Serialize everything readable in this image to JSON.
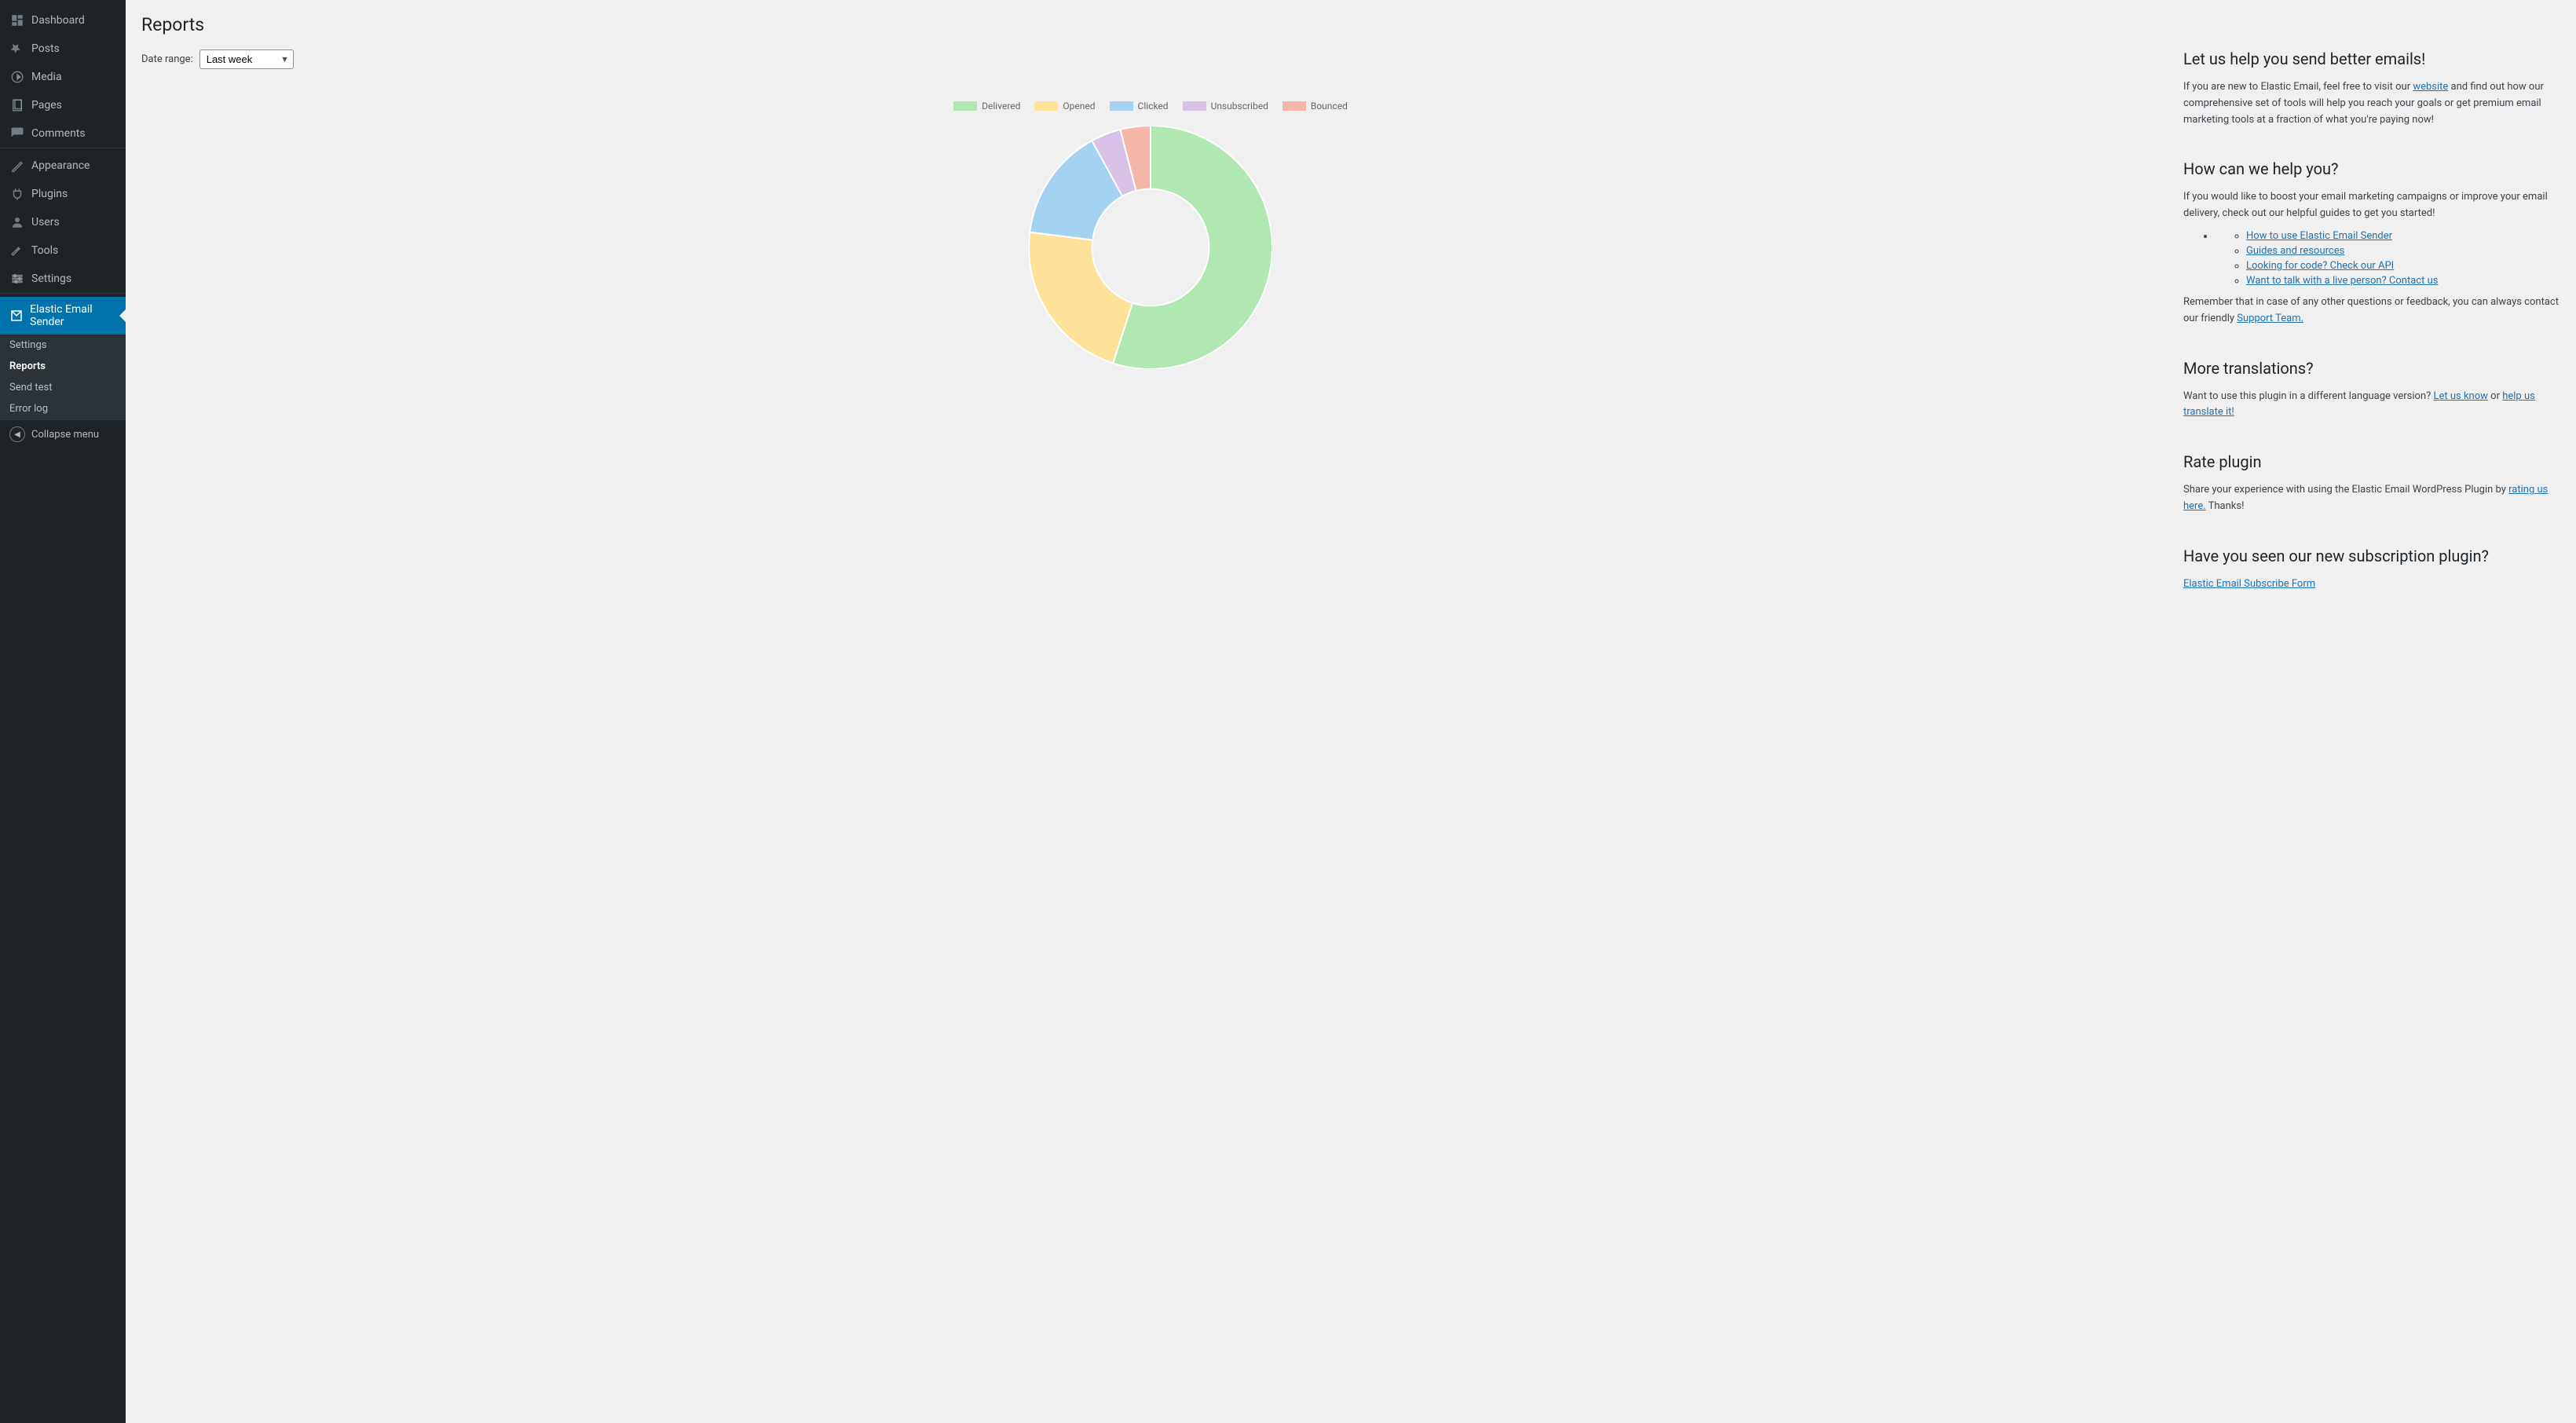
{
  "sidebar": {
    "items": [
      {
        "label": "Dashboard",
        "icon": "dashboard"
      },
      {
        "label": "Posts",
        "icon": "pin"
      },
      {
        "label": "Media",
        "icon": "media"
      },
      {
        "label": "Pages",
        "icon": "page"
      },
      {
        "label": "Comments",
        "icon": "comment"
      }
    ],
    "items2": [
      {
        "label": "Appearance",
        "icon": "appearance"
      },
      {
        "label": "Plugins",
        "icon": "plugin"
      },
      {
        "label": "Users",
        "icon": "user"
      },
      {
        "label": "Tools",
        "icon": "tool"
      },
      {
        "label": "Settings",
        "icon": "settings"
      }
    ],
    "current": {
      "label": "Elastic Email Sender",
      "icon": "mail"
    },
    "sub": [
      {
        "label": "Settings"
      },
      {
        "label": "Reports",
        "current": true
      },
      {
        "label": "Send test"
      },
      {
        "label": "Error log"
      }
    ],
    "collapse": "Collapse menu"
  },
  "page": {
    "title": "Reports",
    "dateRangeLabel": "Date range:",
    "dateRangeValue": "Last week"
  },
  "chart": {
    "type": "donut",
    "legend": [
      {
        "label": "Delivered",
        "color": "#b1e8b1"
      },
      {
        "label": "Opened",
        "color": "#ffe29a"
      },
      {
        "label": "Clicked",
        "color": "#a6d2f2"
      },
      {
        "label": "Unsubscribed",
        "color": "#d9c2e8"
      },
      {
        "label": "Bounced",
        "color": "#f5b8a8"
      }
    ],
    "values": [
      55,
      22,
      15,
      4,
      4
    ],
    "innerRadiusPct": 48,
    "outerRadiusPct": 100,
    "size": 310,
    "background": "#f0f0f1"
  },
  "help": {
    "s1_title": "Let us help you send better emails!",
    "s1_p_a": "If you are new to Elastic Email, feel free to visit our ",
    "s1_website": "website",
    "s1_p_b": " and find out how our comprehensive set of tools will help you reach your goals or get premium email marketing tools at a fraction of what you're paying now!",
    "s2_title": "How can we help you?",
    "s2_p": "If you would like to boost your email marketing campaigns or improve your email delivery, check out our helpful guides to get you started!",
    "s2_li1": "How to use Elastic Email Sender",
    "s2_li2": "Guides and resources",
    "s2_li3": "Looking for code? Check our API",
    "s2_li4": "Want to talk with a live person? Contact us",
    "s2_p2_a": "Remember that in case of any other questions or feedback, you can always contact our friendly ",
    "s2_support": "Support Team.",
    "s3_title": "More translations?",
    "s3_p_a": "Want to use this plugin in a different language version? ",
    "s3_know": "Let us know",
    "s3_or": " or ",
    "s3_help": "help us translate it!",
    "s4_title": "Rate plugin",
    "s4_p_a": "Share your experience with using the Elastic Email WordPress Plugin by ",
    "s4_rating": "rating us here.",
    "s4_p_b": " Thanks!",
    "s5_title": "Have you seen our new subscription plugin?",
    "s5_link": "Elastic Email Subscribe Form"
  }
}
